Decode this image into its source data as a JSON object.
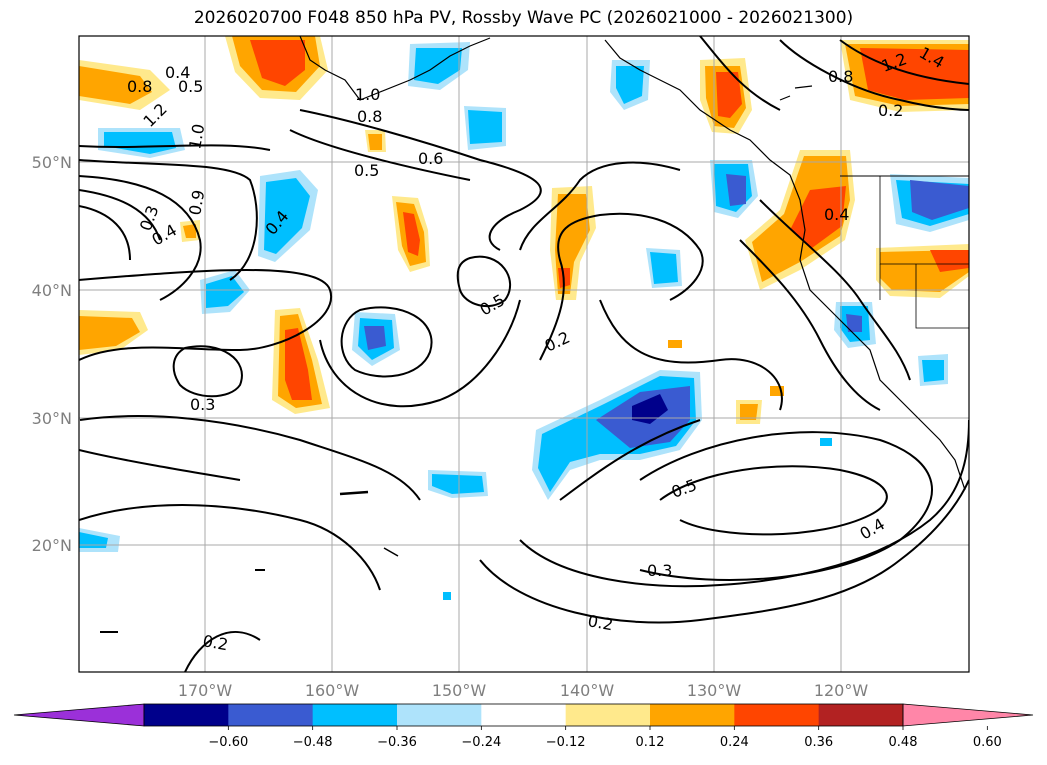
{
  "title": "2026020700 F048 850 hPa PV, Rossby Wave PC (2026021000 - 2026021300)",
  "lat_labels": [
    "50°N",
    "40°N",
    "30°N",
    "20°N"
  ],
  "lon_labels": [
    "170°W",
    "160°W",
    "150°W",
    "140°W",
    "130°W",
    "120°W"
  ],
  "contour_labels": [
    "0.4",
    "0.5",
    "0.8",
    "1.2",
    "1.0",
    "1.0",
    "0.8",
    "0.6",
    "0.5",
    "0.3",
    "0.4",
    "0.9",
    "0.4",
    "0.5",
    "0.2",
    "0.3",
    "0.5",
    "0.3",
    "0.2",
    "0.2",
    "0.4",
    "0.2",
    "0.4",
    "1.2",
    "1.4",
    "0.8"
  ],
  "colorbar": {
    "ticks": [
      "−0.60",
      "−0.48",
      "−0.36",
      "−0.24",
      "−0.12",
      "0.12",
      "0.24",
      "0.36",
      "0.48",
      "0.60"
    ],
    "colors": [
      "#9b30d9",
      "#00008b",
      "#3a5bd1",
      "#00bfff",
      "#aee3fb",
      "#ffffff",
      "#ffe98c",
      "#ffa500",
      "#ff4500",
      "#b22222",
      "#ff86a8"
    ]
  }
}
